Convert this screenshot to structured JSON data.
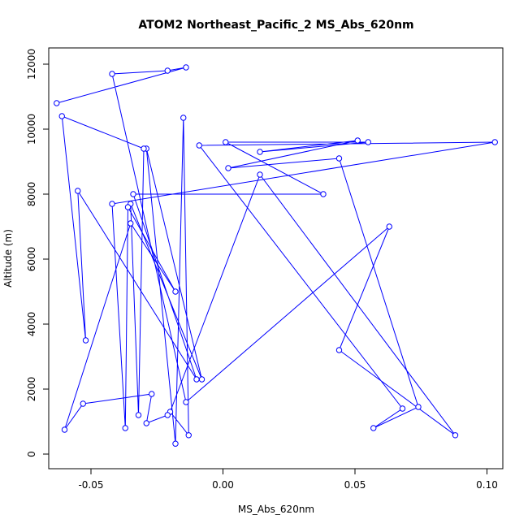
{
  "chart_data": {
    "type": "line",
    "title": "ATOM2 Northeast_Pacific_2 MS_Abs_620nm",
    "xlabel": "MS_Abs_620nm",
    "ylabel": "Altitude (m)",
    "xlim": [
      -0.066,
      0.106
    ],
    "ylim": [
      -450,
      12500
    ],
    "x_ticks": [
      -0.05,
      0.0,
      0.05,
      0.1
    ],
    "x_tick_labels": [
      "-0.05",
      "0.00",
      "0.05",
      "0.10"
    ],
    "y_ticks": [
      0,
      2000,
      4000,
      6000,
      8000,
      10000,
      12000
    ],
    "y_tick_labels": [
      "0",
      "2000",
      "4000",
      "6000",
      "8000",
      "10000",
      "12000"
    ],
    "grid": false,
    "series_color": "#0000ff",
    "points": [
      {
        "x": -0.063,
        "y": 10800
      },
      {
        "x": -0.014,
        "y": 11900
      },
      {
        "x": -0.021,
        "y": 11800
      },
      {
        "x": -0.042,
        "y": 11700
      },
      {
        "x": -0.014,
        "y": 1600
      },
      {
        "x": 0.063,
        "y": 7000
      },
      {
        "x": 0.044,
        "y": 3200
      },
      {
        "x": 0.088,
        "y": 580
      },
      {
        "x": 0.014,
        "y": 8600
      },
      {
        "x": -0.02,
        "y": 1300
      },
      {
        "x": -0.013,
        "y": 580
      },
      {
        "x": -0.015,
        "y": 10350
      },
      {
        "x": -0.018,
        "y": 320
      },
      {
        "x": -0.029,
        "y": 9400
      },
      {
        "x": -0.008,
        "y": 2300
      },
      {
        "x": -0.035,
        "y": 7700
      },
      {
        "x": -0.032,
        "y": 1200
      },
      {
        "x": -0.03,
        "y": 9400
      },
      {
        "x": -0.061,
        "y": 10400
      },
      {
        "x": -0.052,
        "y": 3500
      },
      {
        "x": -0.055,
        "y": 8100
      },
      {
        "x": -0.01,
        "y": 2300
      },
      {
        "x": -0.034,
        "y": 8000
      },
      {
        "x": 0.038,
        "y": 8000
      },
      {
        "x": 0.001,
        "y": 9600
      },
      {
        "x": 0.055,
        "y": 9600
      },
      {
        "x": 0.014,
        "y": 9300
      },
      {
        "x": 0.051,
        "y": 9650
      },
      {
        "x": 0.002,
        "y": 8800
      },
      {
        "x": 0.044,
        "y": 9100
      },
      {
        "x": 0.074,
        "y": 1450
      },
      {
        "x": 0.057,
        "y": 800
      },
      {
        "x": 0.068,
        "y": 1400
      },
      {
        "x": -0.009,
        "y": 9500
      },
      {
        "x": 0.103,
        "y": 9600
      },
      {
        "x": -0.042,
        "y": 7700
      },
      {
        "x": -0.037,
        "y": 800
      },
      {
        "x": -0.036,
        "y": 7600
      },
      {
        "x": -0.018,
        "y": 5000
      },
      {
        "x": -0.035,
        "y": 7100
      },
      {
        "x": -0.06,
        "y": 750
      },
      {
        "x": -0.053,
        "y": 1550
      },
      {
        "x": -0.027,
        "y": 1850
      },
      {
        "x": -0.029,
        "y": 950
      },
      {
        "x": -0.021,
        "y": 1200
      }
    ]
  }
}
